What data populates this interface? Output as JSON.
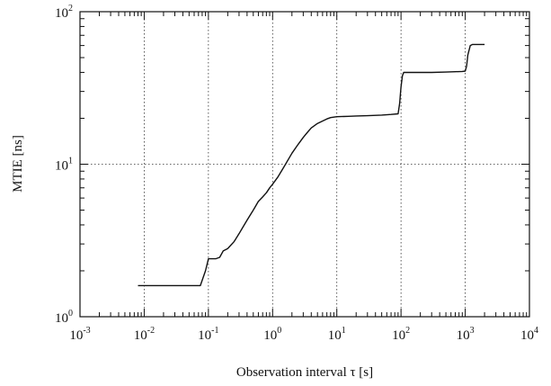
{
  "chart_data": {
    "type": "line",
    "title": "",
    "xlabel": "Observation interval τ [s]",
    "ylabel": "MTIE [ns]",
    "xscale": "log",
    "yscale": "log",
    "xlim": [
      0.001,
      10000
    ],
    "ylim": [
      1,
      100
    ],
    "grid": true,
    "x_ticks": [
      {
        "value": 0.001,
        "base": "10",
        "exp": "-3"
      },
      {
        "value": 0.01,
        "base": "10",
        "exp": "-2"
      },
      {
        "value": 0.1,
        "base": "10",
        "exp": "-1"
      },
      {
        "value": 1,
        "base": "10",
        "exp": "0"
      },
      {
        "value": 10,
        "base": "10",
        "exp": "1"
      },
      {
        "value": 100,
        "base": "10",
        "exp": "2"
      },
      {
        "value": 1000,
        "base": "10",
        "exp": "3"
      },
      {
        "value": 10000,
        "base": "10",
        "exp": "4"
      }
    ],
    "y_ticks": [
      {
        "value": 1,
        "base": "10",
        "exp": "0"
      },
      {
        "value": 10,
        "base": "10",
        "exp": "1"
      },
      {
        "value": 100,
        "base": "10",
        "exp": "2"
      }
    ],
    "series": [
      {
        "x": [
          0.008,
          0.02,
          0.05,
          0.075,
          0.09,
          0.1,
          0.13,
          0.15,
          0.17,
          0.2,
          0.25,
          0.3,
          0.4,
          0.5,
          0.6,
          0.7,
          0.8,
          0.9,
          1.0,
          1.2,
          1.5,
          2.0,
          2.5,
          3.0,
          3.5,
          4.0,
          5.0,
          6.0,
          7.0,
          8.0,
          10,
          15,
          20,
          30,
          50,
          70,
          90,
          95,
          100,
          105,
          110,
          150,
          200,
          300,
          500,
          700,
          900,
          1000,
          1050,
          1100,
          1200,
          1300,
          1500,
          2000
        ],
        "y": [
          1.6,
          1.6,
          1.6,
          1.6,
          2.0,
          2.4,
          2.4,
          2.45,
          2.7,
          2.8,
          3.1,
          3.5,
          4.3,
          5.0,
          5.7,
          6.1,
          6.5,
          7.0,
          7.4,
          8.2,
          9.6,
          11.8,
          13.5,
          15.0,
          16.2,
          17.3,
          18.5,
          19.2,
          19.8,
          20.2,
          20.5,
          20.6,
          20.7,
          20.8,
          21.0,
          21.2,
          21.4,
          25.0,
          32.0,
          38.0,
          40.0,
          40.0,
          40.0,
          40.0,
          40.2,
          40.4,
          40.6,
          40.8,
          44.0,
          52.0,
          60.0,
          61.0,
          61.0,
          61.0
        ]
      }
    ]
  }
}
